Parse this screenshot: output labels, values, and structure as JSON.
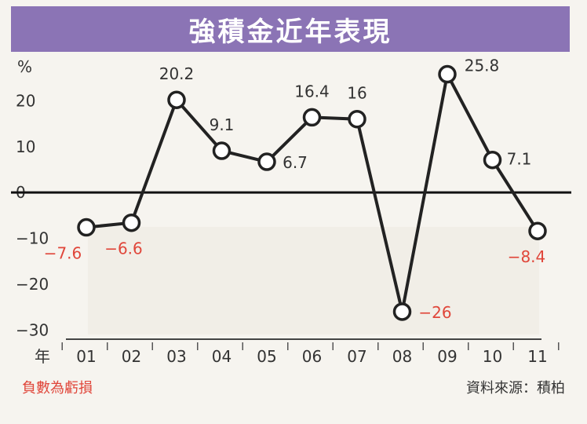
{
  "title": "強積金近年表現",
  "note": "負數為虧損",
  "source": "資料來源：積柏",
  "colors": {
    "title_bg": "#8b74b5",
    "line": "#222222",
    "positive_label": "#333333",
    "negative_label": "#e0463a",
    "plot_bg": "#f1eee7"
  },
  "chart_data": {
    "type": "line",
    "title": "強積金近年表現",
    "ylabel": "%",
    "xlabel": "年",
    "ylim": [
      -32,
      30
    ],
    "yticks": [
      -30,
      -20,
      -10,
      0,
      10,
      20
    ],
    "grid": false,
    "legend": "none",
    "categories": [
      "01",
      "02",
      "03",
      "04",
      "05",
      "06",
      "07",
      "08",
      "09",
      "10",
      "11"
    ],
    "series": [
      {
        "values": [
          -7.6,
          -6.6,
          20.2,
          9.1,
          6.7,
          16.4,
          16,
          -26,
          25.8,
          7.1,
          -8.4
        ],
        "labels": [
          "-7.6",
          "-6.6",
          "20.2",
          "9.1",
          "6.7",
          "16.4",
          "16",
          "-26",
          "25.8",
          "7.1",
          "-8.4"
        ]
      }
    ]
  }
}
